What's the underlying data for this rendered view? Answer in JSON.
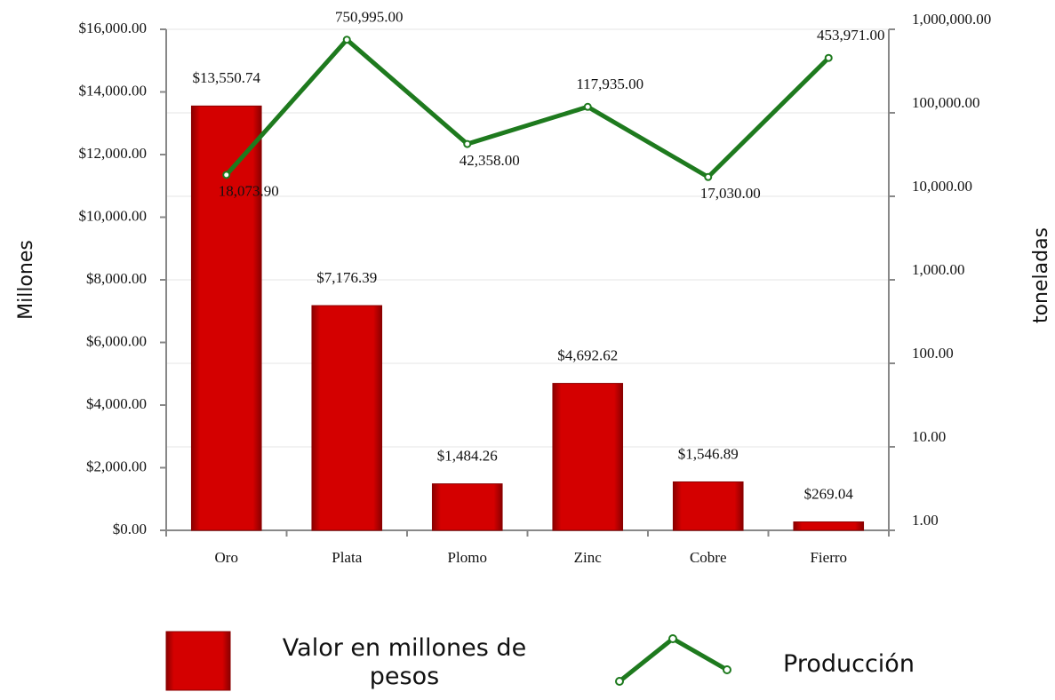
{
  "chart_data": {
    "type": "bar",
    "categories": [
      "Oro",
      "Plata",
      "Plomo",
      "Zinc",
      "Cobre",
      "Fierro"
    ],
    "y_label": "Millones",
    "y2_label": "toneladas",
    "ylim": [
      0,
      16000
    ],
    "yticks": [
      {
        "value": 0,
        "label": "$0.00"
      },
      {
        "value": 2000,
        "label": "$2,000.00"
      },
      {
        "value": 4000,
        "label": "$4,000.00"
      },
      {
        "value": 6000,
        "label": "$6,000.00"
      },
      {
        "value": 8000,
        "label": "$8,000.00"
      },
      {
        "value": 10000,
        "label": "$10,000.00"
      },
      {
        "value": 12000,
        "label": "$12,000.00"
      },
      {
        "value": 14000,
        "label": "$14,000.00"
      },
      {
        "value": 16000,
        "label": "$16,000.00"
      }
    ],
    "y2lim": [
      1,
      1000000
    ],
    "y2scale": "log",
    "y2ticks": [
      {
        "value": 1,
        "label": "1.00"
      },
      {
        "value": 10,
        "label": "10.00"
      },
      {
        "value": 100,
        "label": "100.00"
      },
      {
        "value": 1000,
        "label": "1,000.00"
      },
      {
        "value": 10000,
        "label": "10,000.00"
      },
      {
        "value": 100000,
        "label": "100,000.00"
      },
      {
        "value": 1000000,
        "label": "1,000,000.00"
      }
    ],
    "grid": true,
    "series": [
      {
        "name": "Valor en millones de pesos",
        "type": "bar",
        "color": "#c00000",
        "values": [
          13550.74,
          7176.39,
          1484.26,
          4692.62,
          1546.89,
          269.04
        ],
        "value_labels": [
          "$13,550.74",
          "$7,176.39",
          "$1,484.26",
          "$4,692.62",
          "$1,546.89",
          "$269.04"
        ]
      },
      {
        "name": "Producción",
        "type": "line",
        "axis": "y2",
        "color": "#1e7a1e",
        "values": [
          18073.9,
          750995,
          42358,
          117935,
          17030,
          453971
        ],
        "value_labels": [
          "18,073.90",
          "750,995.00",
          "42,358.00",
          "117,935.00",
          "17,030.00",
          "453,971.00"
        ]
      }
    ]
  }
}
